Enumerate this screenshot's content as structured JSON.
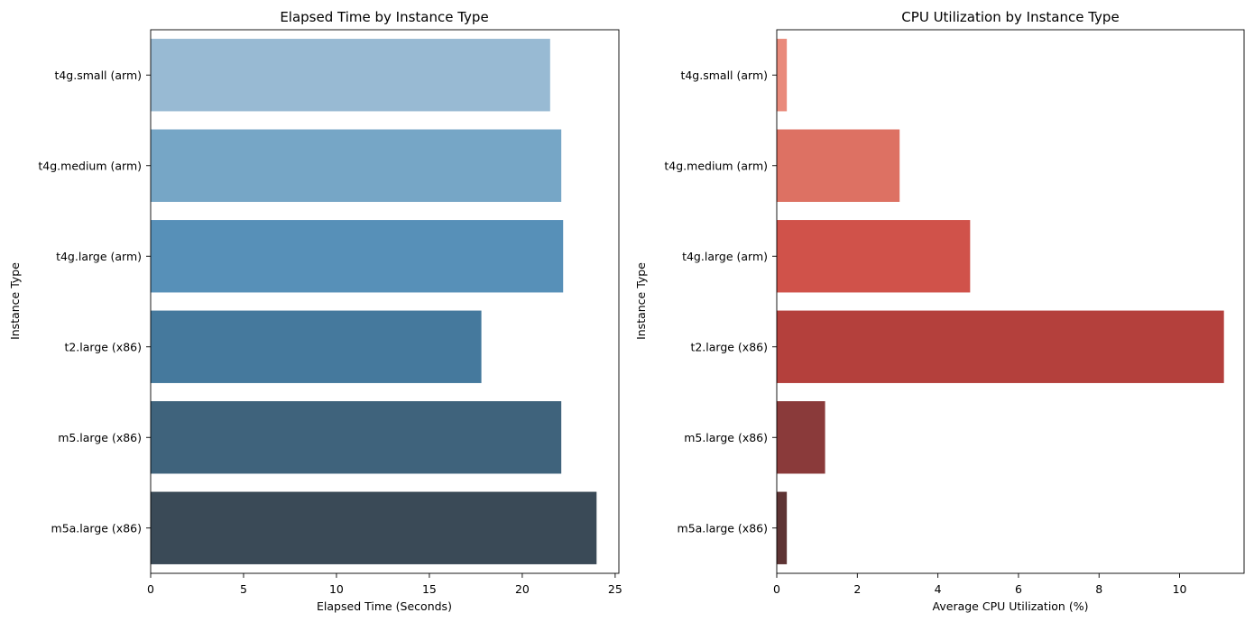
{
  "chart_data": [
    {
      "type": "bar",
      "orientation": "horizontal",
      "title": "Elapsed Time by Instance Type",
      "xlabel": "Elapsed Time (Seconds)",
      "ylabel": "Instance Type",
      "categories": [
        "t4g.small (arm)",
        "t4g.medium (arm)",
        "t4g.large (arm)",
        "t2.large (x86)",
        "m5.large (x86)",
        "m5a.large (x86)"
      ],
      "values": [
        21.5,
        22.1,
        22.2,
        17.8,
        22.1,
        24.0
      ],
      "colors": [
        "#98bad3",
        "#76a6c6",
        "#5790b8",
        "#45799d",
        "#3f637c",
        "#3a4a57"
      ],
      "xlim": [
        0,
        25.2
      ],
      "xticks": [
        0,
        5,
        10,
        15,
        20,
        25
      ],
      "grid": false
    },
    {
      "type": "bar",
      "orientation": "horizontal",
      "title": "CPU Utilization by Instance Type",
      "xlabel": "Average CPU Utilization (%)",
      "ylabel": "Instance Type",
      "categories": [
        "t4g.small (arm)",
        "t4g.medium (arm)",
        "t4g.large (arm)",
        "t2.large (x86)",
        "m5.large (x86)",
        "m5a.large (x86)"
      ],
      "values": [
        0.25,
        3.05,
        4.8,
        11.1,
        1.2,
        0.25
      ],
      "colors": [
        "#e98a7b",
        "#dd7163",
        "#d0524a",
        "#b4403c",
        "#8a3a3a",
        "#5e3434"
      ],
      "xlim": [
        0,
        11.6
      ],
      "xticks": [
        0,
        2,
        4,
        6,
        8,
        10
      ],
      "grid": false
    }
  ]
}
